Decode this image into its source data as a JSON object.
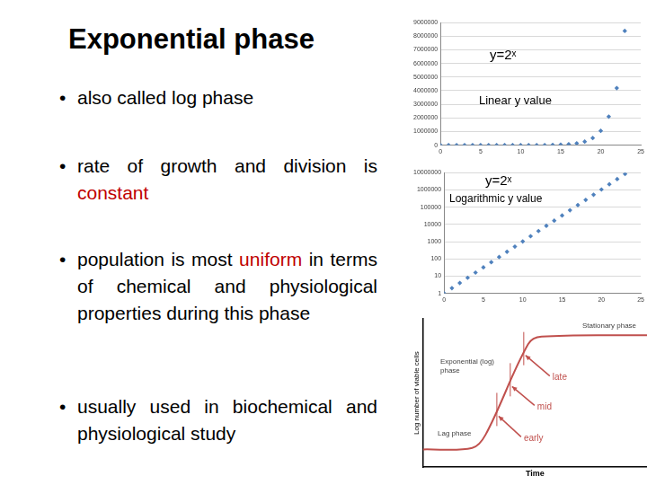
{
  "title": "Exponential phase",
  "bullets": [
    [
      {
        "text": "also called log phase"
      }
    ],
    [
      {
        "text": "rate of growth and division is "
      },
      {
        "text": "constant",
        "color": "#c00000"
      }
    ],
    [
      {
        "text": "population is most "
      },
      {
        "text": "uniform",
        "color": "#c00000"
      },
      {
        "text": " in terms of chemical and physiological properties during this phase"
      }
    ],
    [
      {
        "text": "usually used in biochemical and physiological study"
      }
    ]
  ],
  "chart_data": [
    {
      "type": "scatter",
      "annotations": [
        "y=2ˣ",
        "Linear y value"
      ],
      "x": [
        0,
        1,
        2,
        3,
        4,
        5,
        6,
        7,
        8,
        9,
        10,
        11,
        12,
        13,
        14,
        15,
        16,
        17,
        18,
        19,
        20,
        21,
        22,
        23
      ],
      "values": [
        1,
        2,
        4,
        8,
        16,
        32,
        64,
        128,
        256,
        512,
        1024,
        2048,
        4096,
        8192,
        16384,
        32768,
        65536,
        131072,
        262144,
        524288,
        1048576,
        2097152,
        4194304,
        8388608
      ],
      "color": "#4f81bd",
      "marker": "diamond",
      "xlim": [
        0,
        25
      ],
      "xticks": [
        0,
        5,
        10,
        15,
        20,
        25
      ],
      "ylim": [
        0,
        9000000
      ],
      "yticks": [
        0,
        1000000,
        2000000,
        3000000,
        4000000,
        5000000,
        6000000,
        7000000,
        8000000,
        9000000
      ],
      "grid": true
    },
    {
      "type": "scatter",
      "annotations": [
        "y=2ˣ",
        "Logarithmic y value"
      ],
      "x": [
        0,
        1,
        2,
        3,
        4,
        5,
        6,
        7,
        8,
        9,
        10,
        11,
        12,
        13,
        14,
        15,
        16,
        17,
        18,
        19,
        20,
        21,
        22,
        23
      ],
      "values": [
        1,
        2,
        4,
        8,
        16,
        32,
        64,
        128,
        256,
        512,
        1024,
        2048,
        4096,
        8192,
        16384,
        32768,
        65536,
        131072,
        262144,
        524288,
        1048576,
        2097152,
        4194304,
        8388608
      ],
      "color": "#4f81bd",
      "marker": "diamond",
      "log": "y",
      "xlim": [
        0,
        25
      ],
      "xticks": [
        0,
        5,
        10,
        15,
        20,
        25
      ],
      "ylim": [
        1,
        10000000
      ],
      "yticks": [
        1,
        10,
        100,
        1000,
        10000,
        100000,
        1000000,
        10000000
      ],
      "grid": true
    },
    {
      "type": "line",
      "x_label": "Time",
      "y_label": "Log number of viable cells",
      "annotations": [
        "Lag phase",
        "Exponential (log) phase",
        "Stationary phase"
      ],
      "x": [
        0,
        2.2,
        2.8,
        4.7,
        5.3,
        10
      ],
      "values": [
        1.2,
        1.3,
        2.2,
        8.3,
        8.8,
        8.9
      ],
      "color": "#c0504d",
      "xlim": [
        0,
        10
      ],
      "ylim": [
        0,
        10
      ],
      "grid": false,
      "tick_labels": false,
      "marked_points": [
        {
          "label": "early",
          "x": 3.3,
          "y": 3.5
        },
        {
          "label": "mid",
          "x": 3.9,
          "y": 5.5
        },
        {
          "label": "late",
          "x": 4.5,
          "y": 7.6
        }
      ]
    }
  ]
}
